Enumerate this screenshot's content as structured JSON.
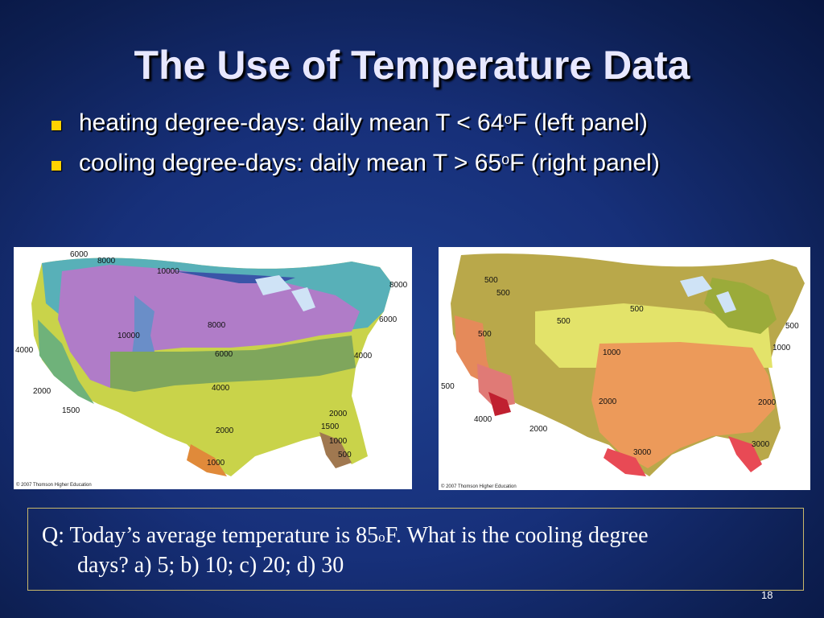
{
  "slide": {
    "title": "The Use of Temperature Data",
    "bullets": [
      {
        "pre": "heating degree-days: daily mean T < 64",
        "sup": "o",
        "post": "F (left panel)"
      },
      {
        "pre": "cooling degree-days: daily mean T  > 65",
        "sup": "o",
        "post": "F (right panel)"
      }
    ],
    "heating_map": {
      "copyright": "© 2007 Thomson Higher Education",
      "labels": [
        "6000",
        "8000",
        "10000",
        "8000",
        "6000",
        "4000",
        "10000",
        "8000",
        "6000",
        "4000",
        "2000",
        "1500",
        "4000",
        "2000",
        "1500",
        "1000",
        "500",
        "2000",
        "1000"
      ]
    },
    "cooling_map": {
      "copyright": "© 2007 Thomson Higher Education",
      "labels": [
        "500",
        "500",
        "500",
        "500",
        "500",
        "1000",
        "1000",
        "500",
        "4000",
        "2000",
        "2000",
        "2000",
        "3000",
        "3000"
      ]
    },
    "question": {
      "line1_pre": "Q: Today’s average temperature is 85",
      "line1_sup": "o",
      "line1_post": "F. What is the cooling degree",
      "line2": "days?  a) 5; b) 10; c) 20; d) 30"
    },
    "page_number": "18"
  }
}
